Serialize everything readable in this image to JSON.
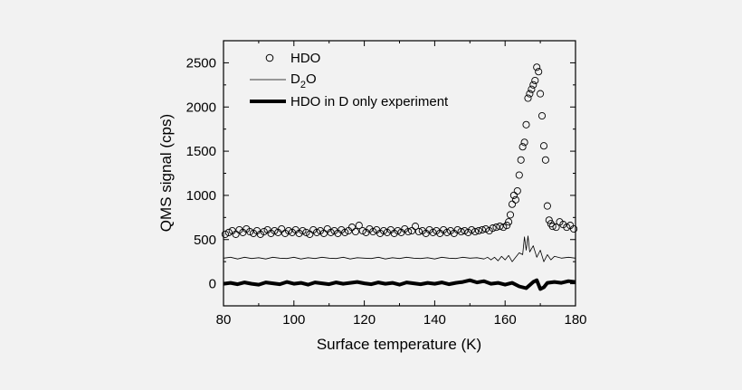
{
  "chart_data": {
    "type": "scatter",
    "xlabel": "Surface temperature (K)",
    "ylabel": "QMS signal (cps)",
    "xlim": [
      80,
      180
    ],
    "ylim": [
      -250,
      2750
    ],
    "xticks": [
      80,
      100,
      120,
      140,
      160,
      180
    ],
    "yticks": [
      0,
      500,
      1000,
      1500,
      2000,
      2500
    ],
    "legend": {
      "placement": "top-left",
      "entries": [
        {
          "text": "HDO",
          "style": "open-circle"
        },
        {
          "text": "D",
          "subscript": "2",
          "text_after": "O",
          "style": "thin-line"
        },
        {
          "text": "HDO in D only experiment",
          "style": "thick-line"
        }
      ]
    },
    "series": [
      {
        "style": "open-circle",
        "points": [
          [
            80.5,
            560
          ],
          [
            81.5,
            580
          ],
          [
            82.5,
            600
          ],
          [
            83.5,
            560
          ],
          [
            84.5,
            610
          ],
          [
            85.5,
            580
          ],
          [
            86.5,
            620
          ],
          [
            87.5,
            590
          ],
          [
            88.5,
            570
          ],
          [
            89.5,
            600
          ],
          [
            90.5,
            560
          ],
          [
            91.5,
            590
          ],
          [
            92.5,
            610
          ],
          [
            93.5,
            570
          ],
          [
            94.5,
            600
          ],
          [
            95.5,
            580
          ],
          [
            96.5,
            620
          ],
          [
            97.5,
            570
          ],
          [
            98.5,
            600
          ],
          [
            99.5,
            580
          ],
          [
            100.5,
            610
          ],
          [
            101.5,
            570
          ],
          [
            102.5,
            600
          ],
          [
            103.5,
            580
          ],
          [
            104.5,
            560
          ],
          [
            105.5,
            610
          ],
          [
            106.5,
            580
          ],
          [
            107.5,
            600
          ],
          [
            108.5,
            570
          ],
          [
            109.5,
            620
          ],
          [
            110.5,
            580
          ],
          [
            111.5,
            600
          ],
          [
            112.5,
            570
          ],
          [
            113.5,
            610
          ],
          [
            114.5,
            580
          ],
          [
            115.5,
            600
          ],
          [
            116.5,
            640
          ],
          [
            117.5,
            590
          ],
          [
            118.5,
            660
          ],
          [
            119.5,
            600
          ],
          [
            120.5,
            580
          ],
          [
            121.5,
            620
          ],
          [
            122.5,
            590
          ],
          [
            123.5,
            610
          ],
          [
            124.5,
            570
          ],
          [
            125.5,
            600
          ],
          [
            126.5,
            580
          ],
          [
            127.5,
            610
          ],
          [
            128.5,
            570
          ],
          [
            129.5,
            600
          ],
          [
            130.5,
            580
          ],
          [
            131.5,
            620
          ],
          [
            132.5,
            590
          ],
          [
            133.5,
            600
          ],
          [
            134.5,
            650
          ],
          [
            135.5,
            590
          ],
          [
            136.5,
            600
          ],
          [
            137.5,
            570
          ],
          [
            138.5,
            610
          ],
          [
            139.5,
            580
          ],
          [
            140.5,
            600
          ],
          [
            141.5,
            570
          ],
          [
            142.5,
            610
          ],
          [
            143.5,
            580
          ],
          [
            144.5,
            600
          ],
          [
            145.5,
            570
          ],
          [
            146.5,
            610
          ],
          [
            147.5,
            590
          ],
          [
            148.5,
            600
          ],
          [
            149.5,
            580
          ],
          [
            150.5,
            610
          ],
          [
            151.5,
            590
          ],
          [
            152.5,
            600
          ],
          [
            153.5,
            610
          ],
          [
            154.5,
            620
          ],
          [
            155.5,
            600
          ],
          [
            156.5,
            630
          ],
          [
            157.5,
            640
          ],
          [
            158.5,
            650
          ],
          [
            159.5,
            640
          ],
          [
            160.5,
            660
          ],
          [
            161.0,
            700
          ],
          [
            161.5,
            780
          ],
          [
            162.0,
            900
          ],
          [
            162.5,
            1000
          ],
          [
            163.0,
            950
          ],
          [
            163.5,
            1050
          ],
          [
            164.0,
            1230
          ],
          [
            164.5,
            1400
          ],
          [
            165.0,
            1550
          ],
          [
            165.5,
            1600
          ],
          [
            166.0,
            1800
          ],
          [
            166.5,
            2100
          ],
          [
            167.0,
            2150
          ],
          [
            167.5,
            2200
          ],
          [
            168.0,
            2250
          ],
          [
            168.5,
            2300
          ],
          [
            169.0,
            2450
          ],
          [
            169.5,
            2400
          ],
          [
            170.0,
            2150
          ],
          [
            170.5,
            1900
          ],
          [
            171.0,
            1560
          ],
          [
            171.5,
            1400
          ],
          [
            172.0,
            880
          ],
          [
            172.5,
            720
          ],
          [
            173.0,
            680
          ],
          [
            173.5,
            650
          ],
          [
            174.5,
            640
          ],
          [
            175.5,
            700
          ],
          [
            176.5,
            670
          ],
          [
            177.5,
            640
          ],
          [
            178.5,
            660
          ],
          [
            179.5,
            620
          ]
        ]
      },
      {
        "style": "thin-line",
        "points": [
          [
            80,
            290
          ],
          [
            82,
            300
          ],
          [
            84,
            280
          ],
          [
            86,
            300
          ],
          [
            88,
            285
          ],
          [
            90,
            295
          ],
          [
            92,
            280
          ],
          [
            94,
            300
          ],
          [
            96,
            290
          ],
          [
            98,
            285
          ],
          [
            100,
            300
          ],
          [
            102,
            280
          ],
          [
            104,
            295
          ],
          [
            106,
            285
          ],
          [
            108,
            300
          ],
          [
            110,
            290
          ],
          [
            112,
            285
          ],
          [
            114,
            300
          ],
          [
            116,
            280
          ],
          [
            118,
            295
          ],
          [
            120,
            290
          ],
          [
            122,
            285
          ],
          [
            124,
            300
          ],
          [
            126,
            280
          ],
          [
            128,
            295
          ],
          [
            130,
            285
          ],
          [
            132,
            300
          ],
          [
            134,
            290
          ],
          [
            136,
            285
          ],
          [
            138,
            295
          ],
          [
            140,
            280
          ],
          [
            142,
            300
          ],
          [
            144,
            290
          ],
          [
            146,
            285
          ],
          [
            148,
            300
          ],
          [
            150,
            290
          ],
          [
            152,
            295
          ],
          [
            154,
            280
          ],
          [
            155,
            300
          ],
          [
            156,
            270
          ],
          [
            157,
            300
          ],
          [
            158,
            260
          ],
          [
            159,
            310
          ],
          [
            160,
            270
          ],
          [
            161,
            320
          ],
          [
            162,
            250
          ],
          [
            163,
            300
          ],
          [
            164,
            350
          ],
          [
            165,
            330
          ],
          [
            165.5,
            530
          ],
          [
            166,
            380
          ],
          [
            166.5,
            540
          ],
          [
            167,
            360
          ],
          [
            168,
            430
          ],
          [
            169,
            300
          ],
          [
            170,
            380
          ],
          [
            171,
            250
          ],
          [
            172,
            330
          ],
          [
            173,
            270
          ],
          [
            174,
            310
          ],
          [
            176,
            290
          ],
          [
            178,
            300
          ],
          [
            180,
            290
          ]
        ]
      },
      {
        "style": "thick-line",
        "points": [
          [
            80,
            0
          ],
          [
            82,
            10
          ],
          [
            84,
            -5
          ],
          [
            86,
            15
          ],
          [
            88,
            0
          ],
          [
            90,
            -10
          ],
          [
            92,
            15
          ],
          [
            94,
            5
          ],
          [
            96,
            -5
          ],
          [
            98,
            20
          ],
          [
            100,
            0
          ],
          [
            102,
            10
          ],
          [
            104,
            -10
          ],
          [
            106,
            15
          ],
          [
            108,
            5
          ],
          [
            110,
            -5
          ],
          [
            112,
            15
          ],
          [
            114,
            0
          ],
          [
            116,
            10
          ],
          [
            118,
            20
          ],
          [
            120,
            5
          ],
          [
            122,
            -5
          ],
          [
            124,
            15
          ],
          [
            126,
            0
          ],
          [
            128,
            10
          ],
          [
            130,
            -10
          ],
          [
            132,
            15
          ],
          [
            134,
            5
          ],
          [
            136,
            -5
          ],
          [
            138,
            10
          ],
          [
            140,
            0
          ],
          [
            142,
            15
          ],
          [
            144,
            -5
          ],
          [
            146,
            10
          ],
          [
            148,
            20
          ],
          [
            150,
            40
          ],
          [
            152,
            15
          ],
          [
            154,
            30
          ],
          [
            156,
            0
          ],
          [
            158,
            10
          ],
          [
            160,
            -10
          ],
          [
            162,
            10
          ],
          [
            164,
            -30
          ],
          [
            166,
            -50
          ],
          [
            168,
            20
          ],
          [
            169,
            40
          ],
          [
            170,
            -60
          ],
          [
            171,
            -40
          ],
          [
            172,
            10
          ],
          [
            174,
            20
          ],
          [
            176,
            10
          ],
          [
            178,
            30
          ],
          [
            180,
            20
          ]
        ]
      }
    ]
  }
}
